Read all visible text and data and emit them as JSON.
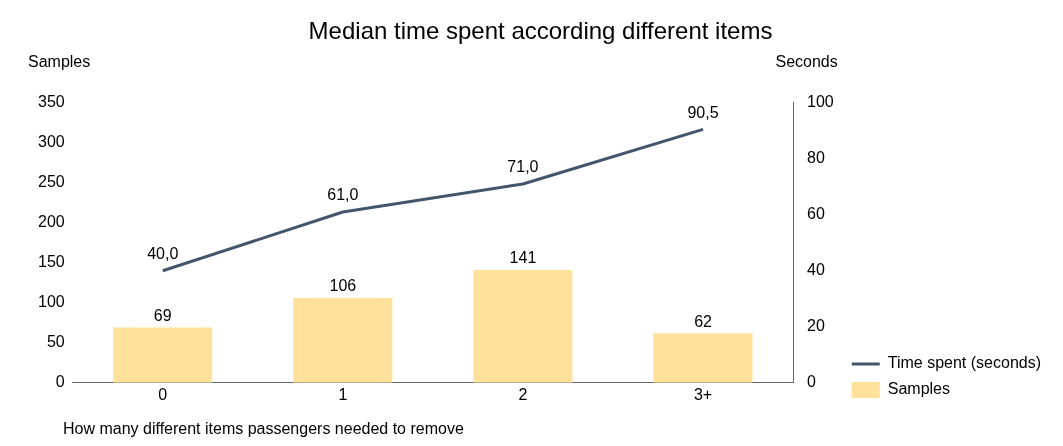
{
  "chart_data": {
    "type": "bar",
    "title": "Median time spent according different items",
    "xlabel": "How many different items passengers needed to remove",
    "ylabel": "Samples",
    "y2label": "Seconds",
    "categories": [
      "0",
      "1",
      "2",
      "3+"
    ],
    "series": [
      {
        "name": "Time spent (seconds)",
        "type": "line",
        "axis": "y2",
        "color": "#44546a",
        "values": [
          40.0,
          61.0,
          71.0,
          90.5
        ],
        "value_labels": [
          "40,0",
          "61,0",
          "71,0",
          "90,5"
        ],
        "marker": "none"
      },
      {
        "name": "Samples",
        "axis": "y",
        "color": "#ffe19c",
        "values": [
          69,
          106,
          141,
          62
        ],
        "value_labels": [
          "69",
          "106",
          "141",
          "62"
        ]
      }
    ],
    "ylim": [
      0,
      350
    ],
    "yticks": [
      0,
      50,
      100,
      150,
      200,
      250,
      300,
      350
    ],
    "y2lim": [
      0,
      100
    ],
    "y2ticks": [
      0,
      20,
      40,
      60,
      80,
      100
    ],
    "grid": false,
    "legend": "right"
  }
}
